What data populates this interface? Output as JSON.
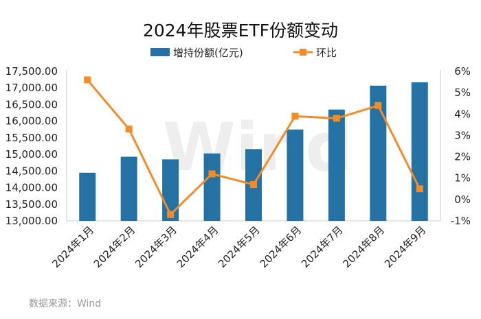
{
  "chart_data": {
    "type": "bar+line",
    "title": "2024年股票ETF份额变动",
    "categories": [
      "2024年1月",
      "2024年2月",
      "2024年3月",
      "2024年4月",
      "2024年5月",
      "2024年6月",
      "2024年7月",
      "2024年8月",
      "2024年9月"
    ],
    "series": [
      {
        "name": "增持份额(亿元)",
        "type": "bar",
        "axis": "left",
        "color": "#2471A3",
        "values": [
          14450,
          14930,
          14850,
          15030,
          15160,
          15750,
          16350,
          17070,
          17170
        ]
      },
      {
        "name": "环比",
        "type": "line",
        "axis": "right",
        "color": "#F28C28",
        "values": [
          5.6,
          3.3,
          -0.7,
          1.2,
          0.7,
          3.9,
          3.8,
          4.4,
          0.5
        ]
      }
    ],
    "y_left": {
      "min": 13000,
      "max": 17500,
      "step": 500,
      "tick_labels": [
        "13,000.00",
        "13,500.00",
        "14,000.00",
        "14,500.00",
        "15,000.00",
        "15,500.00",
        "16,000.00",
        "16,500.00",
        "17,000.00",
        "17,500.00"
      ]
    },
    "y_right": {
      "min": -1,
      "max": 6,
      "step": 1,
      "tick_labels": [
        "-1%",
        "0%",
        "1%",
        "2%",
        "3%",
        "4%",
        "5%",
        "6%"
      ]
    },
    "legend_position": "top-center",
    "grid": false,
    "watermark": "Wind",
    "source": "数据来源：Wind"
  }
}
